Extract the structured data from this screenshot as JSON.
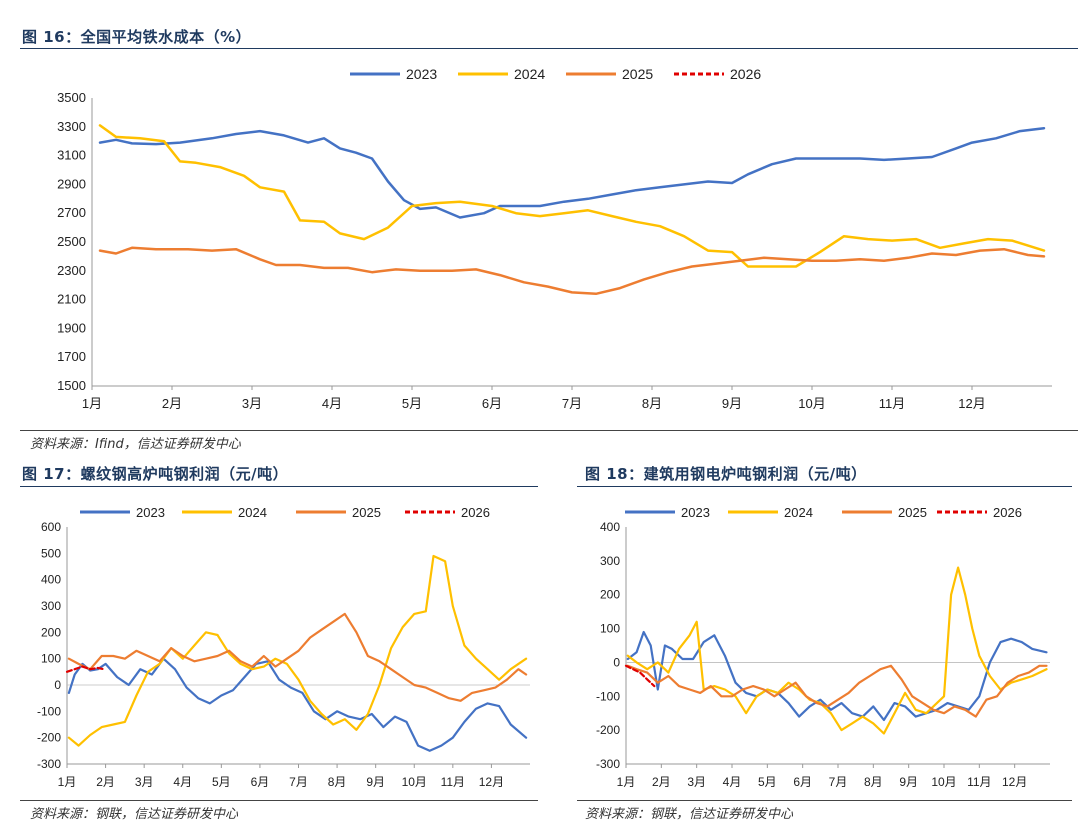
{
  "charts": {
    "fig16": {
      "title": "图 16：全国平均铁水成本（%）",
      "source": "资料来源：Ifind，信达证券研发中心"
    },
    "fig17": {
      "title": "图 17：螺纹钢高炉吨钢利润（元/吨）",
      "source": "资料来源：钢联，信达证券研发中心"
    },
    "fig18": {
      "title": "图 18：建筑用钢电炉吨钢利润（元/吨）",
      "source": "资料来源：钢联，信达证券研发中心"
    }
  },
  "chart_data": [
    {
      "id": "fig16",
      "type": "line",
      "title": "全国平均铁水成本（%）",
      "ylim": [
        1500,
        3500
      ],
      "yticks": [
        1500,
        1700,
        1900,
        2100,
        2300,
        2500,
        2700,
        2900,
        3100,
        3300,
        3500
      ],
      "xlim": [
        1,
        13
      ],
      "xticks": [
        "1月",
        "2月",
        "3月",
        "4月",
        "5月",
        "6月",
        "7月",
        "8月",
        "9月",
        "10月",
        "11月",
        "12月"
      ],
      "legend": "top-center",
      "series": [
        {
          "name": "2023",
          "color": "#4472C4",
          "dashed": false,
          "x": [
            1.1,
            1.3,
            1.5,
            1.8,
            2.1,
            2.5,
            2.8,
            3.1,
            3.4,
            3.7,
            3.9,
            4.1,
            4.3,
            4.5,
            4.7,
            4.9,
            5.1,
            5.3,
            5.6,
            5.9,
            6.1,
            6.3,
            6.6,
            6.9,
            7.2,
            7.5,
            7.8,
            8.1,
            8.4,
            8.7,
            9.0,
            9.2,
            9.5,
            9.8,
            10.0,
            10.3,
            10.6,
            10.9,
            11.2,
            11.5,
            11.8,
            12.0,
            12.3,
            12.6,
            12.9
          ],
          "y": [
            3190,
            3210,
            3185,
            3180,
            3190,
            3220,
            3250,
            3270,
            3240,
            3190,
            3220,
            3150,
            3120,
            3080,
            2920,
            2790,
            2730,
            2740,
            2670,
            2700,
            2750,
            2750,
            2750,
            2780,
            2800,
            2830,
            2860,
            2880,
            2900,
            2920,
            2910,
            2970,
            3040,
            3080,
            3080,
            3080,
            3080,
            3070,
            3080,
            3090,
            3150,
            3190,
            3220,
            3270,
            3290
          ]
        },
        {
          "name": "2024",
          "color": "#FFC000",
          "dashed": false,
          "x": [
            1.1,
            1.3,
            1.6,
            1.9,
            2.1,
            2.3,
            2.6,
            2.9,
            3.1,
            3.4,
            3.6,
            3.9,
            4.1,
            4.4,
            4.7,
            5.0,
            5.3,
            5.6,
            6.0,
            6.3,
            6.6,
            6.9,
            7.2,
            7.5,
            7.8,
            8.1,
            8.4,
            8.7,
            9.0,
            9.2,
            9.5,
            9.8,
            10.1,
            10.4,
            10.7,
            11.0,
            11.3,
            11.6,
            11.9,
            12.2,
            12.5,
            12.9
          ],
          "y": [
            3310,
            3230,
            3220,
            3200,
            3060,
            3050,
            3020,
            2960,
            2880,
            2850,
            2650,
            2640,
            2560,
            2520,
            2600,
            2750,
            2770,
            2780,
            2750,
            2700,
            2680,
            2700,
            2720,
            2680,
            2640,
            2610,
            2540,
            2440,
            2430,
            2330,
            2330,
            2330,
            2430,
            2540,
            2520,
            2510,
            2520,
            2460,
            2490,
            2520,
            2510,
            2440
          ]
        },
        {
          "name": "2025",
          "color": "#ED7D31",
          "dashed": false,
          "x": [
            1.1,
            1.3,
            1.5,
            1.8,
            2.2,
            2.5,
            2.8,
            3.1,
            3.3,
            3.6,
            3.9,
            4.2,
            4.5,
            4.8,
            5.1,
            5.5,
            5.8,
            6.1,
            6.4,
            6.7,
            7.0,
            7.3,
            7.6,
            7.9,
            8.2,
            8.5,
            8.8,
            9.1,
            9.4,
            9.7,
            10.0,
            10.3,
            10.6,
            10.9,
            11.2,
            11.5,
            11.8,
            12.1,
            12.4,
            12.7,
            12.9
          ],
          "y": [
            2440,
            2420,
            2460,
            2450,
            2450,
            2440,
            2450,
            2380,
            2340,
            2340,
            2320,
            2320,
            2290,
            2310,
            2300,
            2300,
            2310,
            2270,
            2220,
            2190,
            2150,
            2140,
            2180,
            2240,
            2290,
            2330,
            2350,
            2370,
            2390,
            2380,
            2370,
            2370,
            2380,
            2370,
            2390,
            2420,
            2410,
            2440,
            2450,
            2410,
            2400
          ]
        },
        {
          "name": "2026",
          "color": "#E00000",
          "dashed": true,
          "x": [],
          "y": []
        }
      ]
    },
    {
      "id": "fig17",
      "type": "line",
      "title": "螺纹钢高炉吨钢利润（元/吨）",
      "ylim": [
        -300,
        600
      ],
      "yticks": [
        -300,
        -200,
        -100,
        0,
        100,
        200,
        300,
        400,
        500,
        600
      ],
      "xlim": [
        1,
        13
      ],
      "xticks": [
        "1月",
        "2月",
        "3月",
        "4月",
        "5月",
        "6月",
        "7月",
        "8月",
        "9月",
        "10月",
        "11月",
        "12月"
      ],
      "legend": "top-center",
      "series": [
        {
          "name": "2023",
          "color": "#4472C4",
          "dashed": false,
          "x": [
            1.05,
            1.2,
            1.4,
            1.6,
            1.8,
            2.0,
            2.3,
            2.6,
            2.9,
            3.2,
            3.5,
            3.8,
            4.1,
            4.4,
            4.7,
            5.0,
            5.3,
            5.6,
            5.9,
            6.2,
            6.5,
            6.8,
            7.1,
            7.4,
            7.7,
            8.0,
            8.3,
            8.6,
            8.9,
            9.2,
            9.5,
            9.8,
            10.1,
            10.4,
            10.7,
            11.0,
            11.3,
            11.6,
            11.9,
            12.2,
            12.5,
            12.9
          ],
          "y": [
            -30,
            40,
            80,
            55,
            60,
            80,
            30,
            0,
            60,
            40,
            100,
            60,
            -10,
            -50,
            -70,
            -40,
            -20,
            30,
            80,
            90,
            20,
            -10,
            -30,
            -100,
            -130,
            -100,
            -120,
            -130,
            -110,
            -160,
            -120,
            -140,
            -230,
            -250,
            -230,
            -200,
            -140,
            -90,
            -70,
            -80,
            -150,
            -200
          ]
        },
        {
          "name": "2024",
          "color": "#FFC000",
          "dashed": false,
          "x": [
            1.05,
            1.3,
            1.6,
            1.9,
            2.2,
            2.5,
            2.8,
            3.1,
            3.4,
            3.7,
            4.0,
            4.3,
            4.6,
            4.9,
            5.2,
            5.5,
            5.8,
            6.1,
            6.4,
            6.7,
            7.0,
            7.3,
            7.6,
            7.9,
            8.2,
            8.5,
            8.8,
            9.1,
            9.4,
            9.7,
            10.0,
            10.3,
            10.5,
            10.8,
            11.0,
            11.3,
            11.6,
            11.9,
            12.2,
            12.5,
            12.9
          ],
          "y": [
            -200,
            -230,
            -190,
            -160,
            -150,
            -140,
            -40,
            50,
            80,
            140,
            100,
            150,
            200,
            190,
            120,
            80,
            60,
            70,
            100,
            80,
            20,
            -60,
            -110,
            -150,
            -130,
            -170,
            -110,
            0,
            140,
            220,
            270,
            280,
            490,
            470,
            300,
            150,
            100,
            60,
            20,
            60,
            100
          ]
        },
        {
          "name": "2025",
          "color": "#ED7D31",
          "dashed": false,
          "x": [
            1.05,
            1.3,
            1.6,
            1.9,
            2.2,
            2.5,
            2.8,
            3.1,
            3.4,
            3.7,
            4.0,
            4.3,
            4.6,
            4.9,
            5.2,
            5.5,
            5.8,
            6.1,
            6.4,
            6.7,
            7.0,
            7.3,
            7.6,
            7.9,
            8.2,
            8.5,
            8.8,
            9.1,
            9.4,
            9.7,
            10.0,
            10.3,
            10.6,
            10.9,
            11.2,
            11.5,
            11.8,
            12.1,
            12.4,
            12.7,
            12.9
          ],
          "y": [
            100,
            80,
            60,
            110,
            110,
            100,
            130,
            110,
            90,
            140,
            110,
            90,
            100,
            110,
            130,
            90,
            70,
            110,
            70,
            100,
            130,
            180,
            210,
            240,
            270,
            200,
            110,
            90,
            60,
            30,
            0,
            -10,
            -30,
            -50,
            -60,
            -30,
            -20,
            -10,
            20,
            60,
            40
          ]
        },
        {
          "name": "2026",
          "color": "#E00000",
          "dashed": true,
          "x": [
            1.0,
            1.2,
            1.4,
            1.6,
            1.8,
            1.95
          ],
          "y": [
            50,
            60,
            70,
            60,
            65,
            60
          ]
        }
      ]
    },
    {
      "id": "fig18",
      "type": "line",
      "title": "建筑用钢电炉吨钢利润（元/吨）",
      "ylim": [
        -300,
        400
      ],
      "yticks": [
        -300,
        -200,
        -100,
        0,
        100,
        200,
        300,
        400
      ],
      "xlim": [
        1,
        13
      ],
      "xticks": [
        "1月",
        "2月",
        "3月",
        "4月",
        "5月",
        "6月",
        "7月",
        "8月",
        "9月",
        "10月",
        "11月",
        "12月"
      ],
      "legend": "top-center",
      "series": [
        {
          "name": "2023",
          "color": "#4472C4",
          "dashed": false,
          "x": [
            1.05,
            1.3,
            1.5,
            1.7,
            1.9,
            2.1,
            2.3,
            2.6,
            2.9,
            3.2,
            3.5,
            3.8,
            4.1,
            4.4,
            4.7,
            5.0,
            5.3,
            5.6,
            5.9,
            6.2,
            6.5,
            6.8,
            7.1,
            7.4,
            7.7,
            8.0,
            8.3,
            8.6,
            8.9,
            9.2,
            9.5,
            9.8,
            10.1,
            10.4,
            10.7,
            11.0,
            11.3,
            11.6,
            11.9,
            12.2,
            12.5,
            12.9
          ],
          "y": [
            10,
            30,
            90,
            50,
            -80,
            50,
            40,
            10,
            10,
            60,
            80,
            20,
            -60,
            -90,
            -100,
            -80,
            -90,
            -120,
            -160,
            -130,
            -110,
            -140,
            -120,
            -150,
            -160,
            -130,
            -170,
            -120,
            -130,
            -160,
            -150,
            -140,
            -120,
            -130,
            -140,
            -100,
            0,
            60,
            70,
            60,
            40,
            30
          ]
        },
        {
          "name": "2024",
          "color": "#FFC000",
          "dashed": false,
          "x": [
            1.05,
            1.3,
            1.6,
            1.9,
            2.2,
            2.5,
            2.8,
            3.0,
            3.2,
            3.5,
            3.8,
            4.1,
            4.4,
            4.7,
            5.0,
            5.3,
            5.6,
            5.9,
            6.2,
            6.5,
            6.8,
            7.1,
            7.4,
            7.7,
            8.0,
            8.3,
            8.6,
            8.9,
            9.2,
            9.5,
            9.8,
            10.0,
            10.2,
            10.4,
            10.6,
            10.8,
            11.0,
            11.3,
            11.6,
            11.9,
            12.2,
            12.5,
            12.9
          ],
          "y": [
            20,
            0,
            -20,
            0,
            -30,
            40,
            80,
            120,
            -80,
            -70,
            -80,
            -100,
            -150,
            -100,
            -80,
            -90,
            -60,
            -80,
            -110,
            -120,
            -150,
            -200,
            -180,
            -160,
            -180,
            -210,
            -150,
            -90,
            -140,
            -150,
            -120,
            -100,
            200,
            280,
            200,
            100,
            20,
            -40,
            -80,
            -60,
            -50,
            -40,
            -20
          ]
        },
        {
          "name": "2025",
          "color": "#ED7D31",
          "dashed": false,
          "x": [
            1.05,
            1.3,
            1.6,
            1.9,
            2.2,
            2.5,
            2.8,
            3.1,
            3.4,
            3.7,
            4.0,
            4.3,
            4.6,
            4.9,
            5.2,
            5.5,
            5.8,
            6.1,
            6.4,
            6.7,
            7.0,
            7.3,
            7.6,
            7.9,
            8.2,
            8.5,
            8.8,
            9.1,
            9.4,
            9.7,
            10.0,
            10.3,
            10.6,
            10.9,
            11.2,
            11.5,
            11.8,
            12.1,
            12.4,
            12.7,
            12.9
          ],
          "y": [
            -10,
            -20,
            -30,
            -60,
            -40,
            -70,
            -80,
            -90,
            -70,
            -100,
            -100,
            -80,
            -70,
            -80,
            -100,
            -80,
            -60,
            -100,
            -120,
            -130,
            -110,
            -90,
            -60,
            -40,
            -20,
            -10,
            -50,
            -100,
            -120,
            -140,
            -150,
            -130,
            -140,
            -160,
            -110,
            -100,
            -60,
            -40,
            -30,
            -10,
            -10
          ]
        },
        {
          "name": "2026",
          "color": "#E00000",
          "dashed": true,
          "x": [
            1.0,
            1.2,
            1.4,
            1.6,
            1.8
          ],
          "y": [
            -10,
            -20,
            -30,
            -50,
            -70
          ]
        }
      ]
    }
  ]
}
